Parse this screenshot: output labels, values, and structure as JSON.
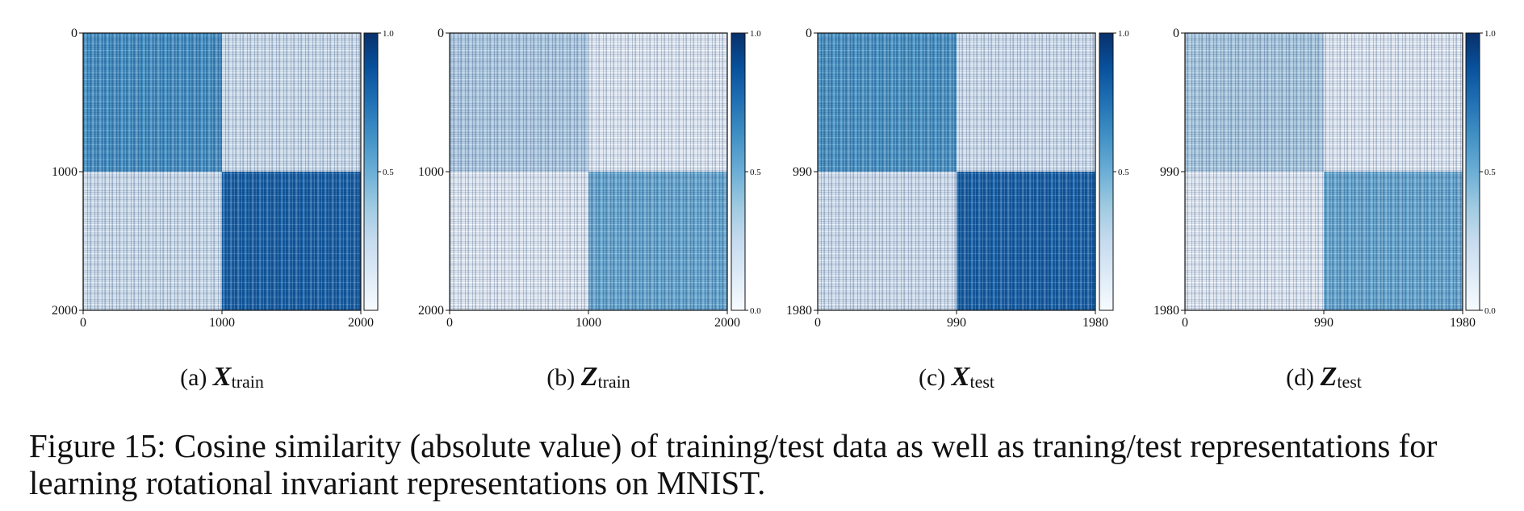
{
  "chart_data": [
    {
      "type": "heatmap",
      "caption_letter": "(a)",
      "caption_symbol": "X",
      "caption_subscript": "train",
      "x_ticks": [
        "0",
        "1000",
        "2000"
      ],
      "y_ticks": [
        "0",
        "1000",
        "2000"
      ],
      "blocks": [
        [
          0.62,
          0.12
        ],
        [
          0.12,
          0.82
        ]
      ],
      "colorbar": {
        "min": 0.0,
        "max": 1.0,
        "ticks": [
          "0.5",
          "1.0"
        ]
      }
    },
    {
      "type": "heatmap",
      "caption_letter": "(b)",
      "caption_symbol": "Z",
      "caption_subscript": "train",
      "x_ticks": [
        "0",
        "1000",
        "2000"
      ],
      "y_ticks": [
        "0",
        "1000",
        "2000"
      ],
      "blocks": [
        [
          0.28,
          0.02
        ],
        [
          0.02,
          0.5
        ]
      ],
      "colorbar": {
        "min": 0.0,
        "max": 1.0,
        "ticks": [
          "0.0",
          "0.5",
          "1.0"
        ]
      }
    },
    {
      "type": "heatmap",
      "caption_letter": "(c)",
      "caption_symbol": "X",
      "caption_subscript": "test",
      "x_ticks": [
        "0",
        "990",
        "1980"
      ],
      "y_ticks": [
        "0",
        "990",
        "1980"
      ],
      "blocks": [
        [
          0.6,
          0.1
        ],
        [
          0.1,
          0.82
        ]
      ],
      "colorbar": {
        "min": 0.0,
        "max": 1.0,
        "ticks": [
          "0.5",
          "1.0"
        ]
      }
    },
    {
      "type": "heatmap",
      "caption_letter": "(d)",
      "caption_symbol": "Z",
      "caption_subscript": "test",
      "x_ticks": [
        "0",
        "990",
        "1980"
      ],
      "y_ticks": [
        "0",
        "990",
        "1980"
      ],
      "blocks": [
        [
          0.3,
          0.02
        ],
        [
          0.02,
          0.5
        ]
      ],
      "colorbar": {
        "min": 0.0,
        "max": 1.0,
        "ticks": [
          "0.0",
          "0.5",
          "1.0"
        ]
      }
    }
  ],
  "figure_caption": "Figure 15: Cosine similarity (absolute value) of training/test data as well as traning/test representations for learning rotational invariant representations on MNIST."
}
